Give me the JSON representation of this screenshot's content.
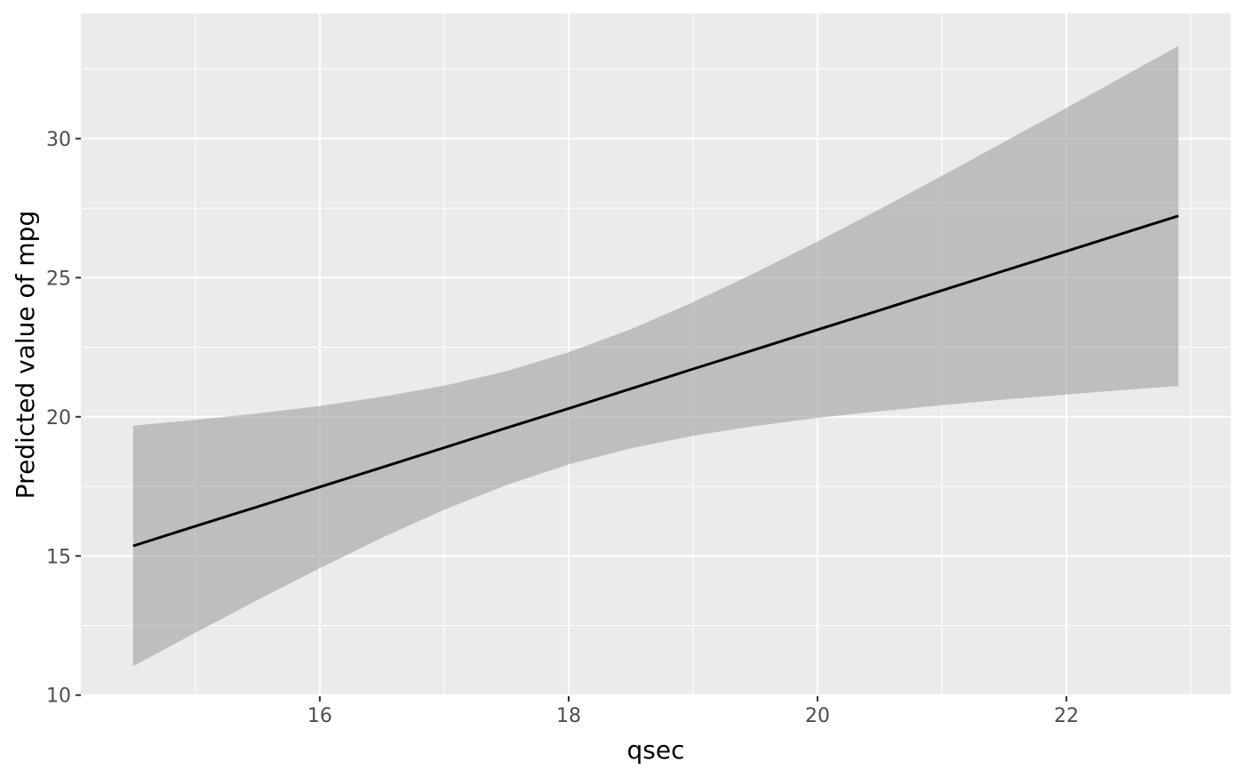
{
  "figure": {
    "background_color": "#FFFFFF",
    "panel_background_color": "#EBEBEB",
    "grid_color": "#FFFFFF",
    "ribbon_color": "#A0A0A0",
    "ribbon_opacity": 0.6,
    "line_color": "#000000",
    "tick_mark_color": "#333333",
    "tick_label_color": "#4D4D4D",
    "axis_title_color": "#000000"
  },
  "chart_data": {
    "type": "line",
    "title": "",
    "xlabel": "qsec",
    "ylabel": "Predicted value of mpg",
    "grid": true,
    "legend_position": "none",
    "xlim": [
      14.08,
      23.32
    ],
    "ylim": [
      9.96,
      34.5
    ],
    "x_ticks_major": [
      16,
      18,
      20,
      22
    ],
    "x_ticks_minor": [
      15,
      17,
      19,
      21,
      23
    ],
    "y_ticks_major": [
      10,
      15,
      20,
      25,
      30
    ],
    "y_ticks_minor": [
      12.5,
      17.5,
      22.5,
      27.5,
      32.5
    ],
    "x": [
      14.5,
      15,
      15.5,
      16,
      16.5,
      17,
      17.5,
      18,
      18.5,
      19,
      19.5,
      20,
      20.5,
      21,
      21.5,
      22,
      22.5,
      22.9
    ],
    "series": [
      {
        "name": "fitted",
        "style": "solid-line",
        "values": [
          15.36,
          16.07,
          16.77,
          17.48,
          18.18,
          18.89,
          19.6,
          20.3,
          21.01,
          21.72,
          22.42,
          23.13,
          23.83,
          24.54,
          25.25,
          25.95,
          26.66,
          27.22
        ]
      },
      {
        "name": "ci_lower",
        "style": "ribbon-bound",
        "values": [
          11.04,
          12.24,
          13.42,
          14.56,
          15.65,
          16.66,
          17.55,
          18.29,
          18.87,
          19.32,
          19.67,
          19.96,
          20.2,
          20.42,
          20.62,
          20.8,
          20.98,
          21.11
        ]
      },
      {
        "name": "ci_upper",
        "style": "ribbon-bound",
        "values": [
          19.68,
          19.89,
          20.12,
          20.39,
          20.72,
          21.12,
          21.64,
          22.32,
          23.15,
          24.12,
          25.18,
          26.3,
          27.46,
          28.66,
          29.88,
          31.1,
          32.34,
          33.33
        ]
      }
    ]
  }
}
